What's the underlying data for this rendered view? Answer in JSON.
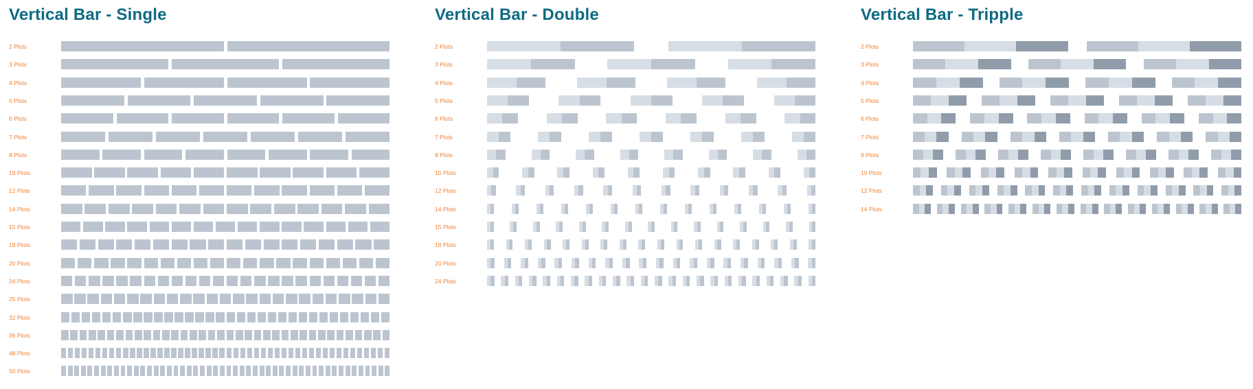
{
  "colors": {
    "title": "#0e6a83",
    "label": "#f07f2e",
    "light": "#d6dde5",
    "mid": "#bcc5cf",
    "dark": "#909caa"
  },
  "panels": [
    {
      "id": "single",
      "title": "Vertical Bar - Single",
      "series": 1,
      "rows": [
        {
          "label": "2 Plots",
          "plots": 2
        },
        {
          "label": "3 Plots",
          "plots": 3
        },
        {
          "label": "4 Plots",
          "plots": 4
        },
        {
          "label": "5 Plots",
          "plots": 5
        },
        {
          "label": "6 Plots",
          "plots": 6
        },
        {
          "label": "7 Plots",
          "plots": 7
        },
        {
          "label": "8 Plots",
          "plots": 8
        },
        {
          "label": "10 Plots",
          "plots": 10
        },
        {
          "label": "12 Plots",
          "plots": 12
        },
        {
          "label": "14 Plots",
          "plots": 14
        },
        {
          "label": "15 Plots",
          "plots": 15
        },
        {
          "label": "18 Plots",
          "plots": 18
        },
        {
          "label": "20 Plots",
          "plots": 20
        },
        {
          "label": "24 Plots",
          "plots": 24
        },
        {
          "label": "25 Plots",
          "plots": 25
        },
        {
          "label": "32 Plots",
          "plots": 32
        },
        {
          "label": "36 Plots",
          "plots": 36
        },
        {
          "label": "48 Plots",
          "plots": 48
        },
        {
          "label": "50 Plots",
          "plots": 50
        }
      ]
    },
    {
      "id": "double",
      "title": "Vertical Bar - Double",
      "series": 2,
      "rows": [
        {
          "label": "2 Plots",
          "plots": 2
        },
        {
          "label": "3 Plots",
          "plots": 3
        },
        {
          "label": "4 Plots",
          "plots": 4
        },
        {
          "label": "5 Plots",
          "plots": 5
        },
        {
          "label": "6 Plots",
          "plots": 6
        },
        {
          "label": "7 Plots",
          "plots": 7
        },
        {
          "label": "8 Plots",
          "plots": 8
        },
        {
          "label": "10 Plots",
          "plots": 10
        },
        {
          "label": "12 Plots",
          "plots": 12
        },
        {
          "label": "14 Plots",
          "plots": 14
        },
        {
          "label": "15 Plots",
          "plots": 15
        },
        {
          "label": "18 Plots",
          "plots": 18
        },
        {
          "label": "20 Plots",
          "plots": 20
        },
        {
          "label": "24 Plots",
          "plots": 24
        }
      ]
    },
    {
      "id": "tripple",
      "title": "Vertical Bar - Tripple",
      "series": 3,
      "rows": [
        {
          "label": "2 Plots",
          "plots": 2
        },
        {
          "label": "3 Plots",
          "plots": 3
        },
        {
          "label": "4 Plots",
          "plots": 4
        },
        {
          "label": "5 Plots",
          "plots": 5
        },
        {
          "label": "6 Plots",
          "plots": 6
        },
        {
          "label": "7 Plots",
          "plots": 7
        },
        {
          "label": "8 Plots",
          "plots": 8
        },
        {
          "label": "10 Plots",
          "plots": 10
        },
        {
          "label": "12 Plots",
          "plots": 12
        },
        {
          "label": "14 Plots",
          "plots": 14
        }
      ]
    }
  ]
}
